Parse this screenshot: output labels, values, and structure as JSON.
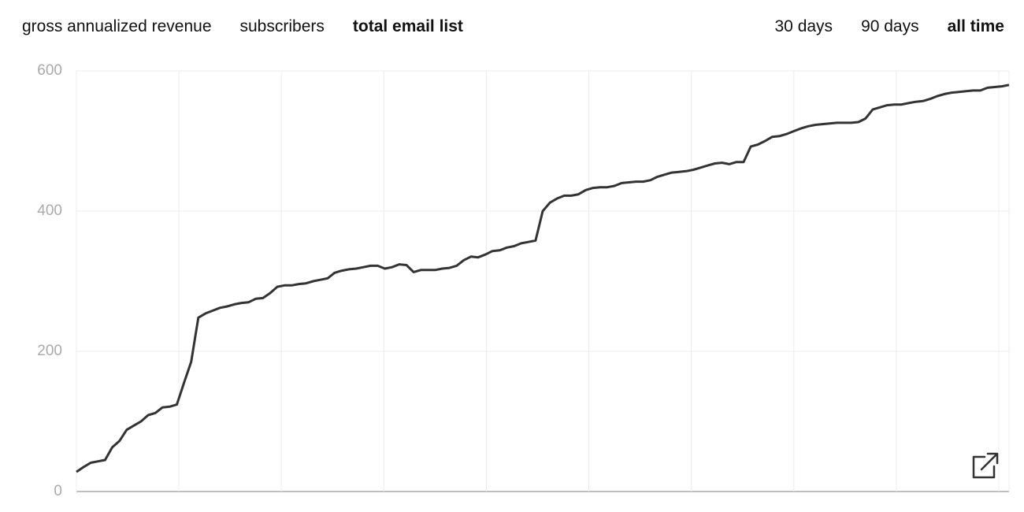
{
  "metric_tabs": [
    {
      "label": "gross annualized revenue",
      "selected": false
    },
    {
      "label": "subscribers",
      "selected": false
    },
    {
      "label": "total email list",
      "selected": true
    }
  ],
  "range_tabs": [
    {
      "label": "30 days",
      "selected": false
    },
    {
      "label": "90 days",
      "selected": false
    },
    {
      "label": "all time",
      "selected": true
    }
  ],
  "chart_data": {
    "type": "line",
    "color": "#333333",
    "grid": true,
    "ylim": [
      0,
      600
    ],
    "yticks": [
      0,
      200,
      400,
      600
    ],
    "values": [
      28,
      35,
      41,
      43,
      45,
      63,
      72,
      88,
      94,
      100,
      109,
      112,
      120,
      121,
      124,
      155,
      185,
      248,
      254,
      258,
      262,
      264,
      267,
      269,
      270,
      275,
      276,
      283,
      292,
      294,
      294,
      296,
      297,
      300,
      302,
      304,
      312,
      315,
      317,
      318,
      320,
      322,
      322,
      318,
      320,
      324,
      323,
      313,
      316,
      316,
      316,
      318,
      319,
      322,
      330,
      335,
      334,
      338,
      343,
      344,
      348,
      350,
      354,
      356,
      358,
      400,
      412,
      418,
      422,
      422,
      424,
      430,
      433,
      434,
      434,
      436,
      440,
      441,
      442,
      442,
      444,
      449,
      452,
      455,
      456,
      457,
      459,
      462,
      465,
      468,
      469,
      467,
      470,
      470,
      492,
      495,
      500,
      506,
      507,
      510,
      514,
      518,
      521,
      523,
      524,
      525,
      526,
      526,
      526,
      527,
      532,
      545,
      548,
      551,
      552,
      552,
      554,
      556,
      557,
      560,
      564,
      567,
      569,
      570,
      571,
      572,
      572,
      576,
      577,
      578,
      580
    ]
  }
}
